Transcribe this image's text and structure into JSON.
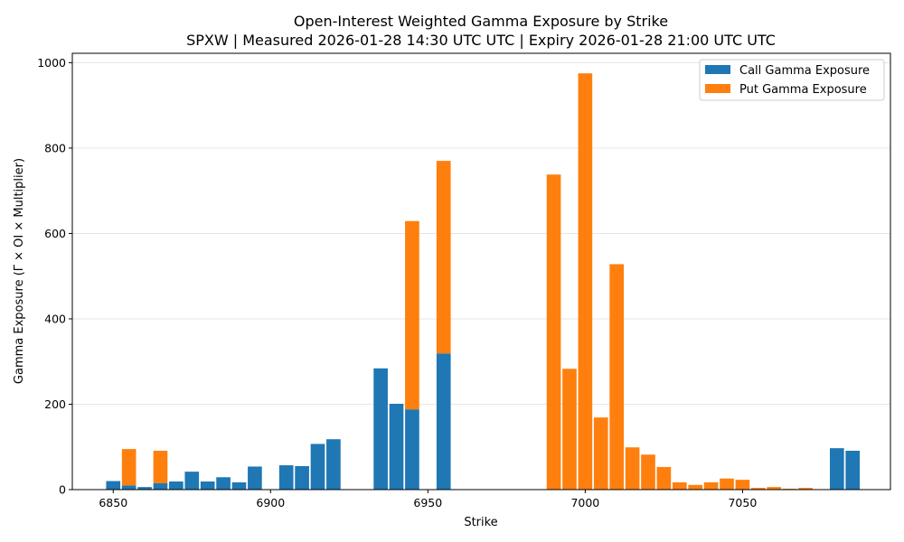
{
  "chart_data": {
    "type": "bar",
    "stacked": true,
    "title": "Open-Interest Weighted Gamma Exposure by Strike",
    "subtitle": "SPXW | Measured 2026-01-28 14:30 UTC UTC | Expiry 2026-01-28 21:00 UTC UTC",
    "xlabel": "Strike",
    "ylabel": "Gamma Exposure (Γ × OI × Multiplier)",
    "xlim": [
      6837,
      7097
    ],
    "ylim": [
      0,
      1022
    ],
    "xticks": [
      6850,
      6900,
      6950,
      7000,
      7050
    ],
    "yticks": [
      0,
      200,
      400,
      600,
      800,
      1000
    ],
    "grid": "y",
    "legend_position": "top-right",
    "bar_width": 4.5,
    "series": [
      {
        "name": "Call Gamma Exposure",
        "color": "#1f77b4",
        "points": [
          {
            "x": 6850,
            "y": 20
          },
          {
            "x": 6855,
            "y": 10
          },
          {
            "x": 6860,
            "y": 6
          },
          {
            "x": 6865,
            "y": 15
          },
          {
            "x": 6870,
            "y": 19
          },
          {
            "x": 6875,
            "y": 42
          },
          {
            "x": 6880,
            "y": 19
          },
          {
            "x": 6885,
            "y": 29
          },
          {
            "x": 6890,
            "y": 17
          },
          {
            "x": 6895,
            "y": 54
          },
          {
            "x": 6905,
            "y": 57
          },
          {
            "x": 6910,
            "y": 55
          },
          {
            "x": 6915,
            "y": 107
          },
          {
            "x": 6920,
            "y": 118
          },
          {
            "x": 6935,
            "y": 284
          },
          {
            "x": 6940,
            "y": 201
          },
          {
            "x": 6945,
            "y": 188
          },
          {
            "x": 6955,
            "y": 319
          },
          {
            "x": 7080,
            "y": 97
          },
          {
            "x": 7085,
            "y": 91
          }
        ]
      },
      {
        "name": "Put Gamma Exposure",
        "color": "#ff7f0e",
        "points": [
          {
            "x": 6855,
            "y": 85
          },
          {
            "x": 6865,
            "y": 76
          },
          {
            "x": 6945,
            "y": 441
          },
          {
            "x": 6955,
            "y": 451
          },
          {
            "x": 6990,
            "y": 738
          },
          {
            "x": 6995,
            "y": 283
          },
          {
            "x": 7000,
            "y": 975
          },
          {
            "x": 7005,
            "y": 169
          },
          {
            "x": 7010,
            "y": 528
          },
          {
            "x": 7015,
            "y": 99
          },
          {
            "x": 7020,
            "y": 82
          },
          {
            "x": 7025,
            "y": 53
          },
          {
            "x": 7030,
            "y": 17
          },
          {
            "x": 7035,
            "y": 11
          },
          {
            "x": 7040,
            "y": 17
          },
          {
            "x": 7045,
            "y": 26
          },
          {
            "x": 7050,
            "y": 23
          },
          {
            "x": 7055,
            "y": 4
          },
          {
            "x": 7060,
            "y": 6
          },
          {
            "x": 7065,
            "y": 2
          },
          {
            "x": 7070,
            "y": 4
          }
        ]
      }
    ]
  }
}
